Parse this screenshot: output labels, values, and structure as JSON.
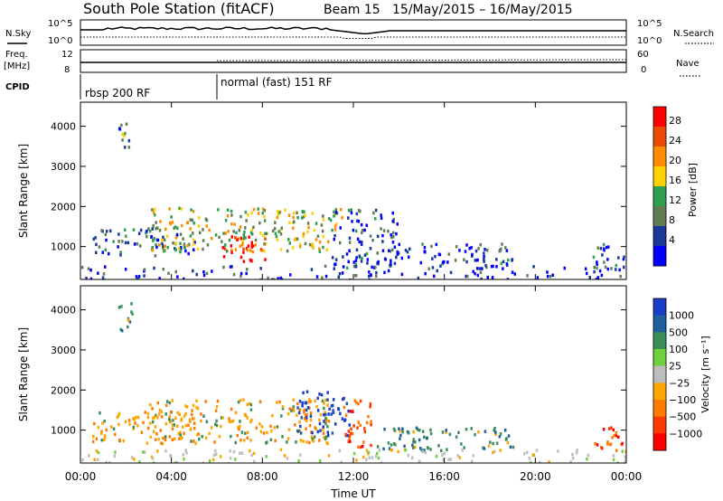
{
  "header": {
    "station": "South Pole Station (fitACF)",
    "beam": "Beam 15",
    "dates": "15/May/2015 – 16/May/2015"
  },
  "top_panels": {
    "nsky_label": "N.Sky",
    "nsearch_label": "N.Search",
    "noise_ticks_left": [
      "10^5",
      "10^0"
    ],
    "noise_ticks_right": [
      "10^5",
      "10^0"
    ],
    "freq_label_1": "Freq.",
    "freq_label_2": "[MHz]",
    "freq_ticks": [
      "12",
      "8"
    ],
    "nave_label": "Nave",
    "nave_ticks": [
      "60",
      "0"
    ],
    "cpid_label": "CPID",
    "cpid_segments": [
      {
        "label": "rbsp 200 RF",
        "start_hour": 0,
        "end_hour": 6
      },
      {
        "label": "normal (fast) 151 RF",
        "start_hour": 6,
        "end_hour": 24
      }
    ]
  },
  "power_panel": {
    "colorbar_label": "Power [dB]",
    "colorbar_ticks": [
      "28",
      "24",
      "20",
      "16",
      "12",
      "8",
      "4"
    ],
    "colors": [
      "#ff0000",
      "#e84a00",
      "#ff8c00",
      "#ffd000",
      "#2e9e4f",
      "#607d52",
      "#1a3a9a",
      "#0000ff"
    ]
  },
  "velocity_panel": {
    "colorbar_label": "Velocity [m s⁻¹]",
    "colorbar_ticks": [
      "1000",
      "500",
      "100",
      "25",
      "−25",
      "−100",
      "−500",
      "−1000"
    ],
    "colors": [
      "#1a3ec8",
      "#1f5f9e",
      "#3b8f5a",
      "#6fd040",
      "#bdbdbd",
      "#ffa500",
      "#ff7a00",
      "#ff3a00",
      "#ff0000"
    ]
  },
  "axes": {
    "ylabel": "Slant Range [km]",
    "xlabel": "Time UT",
    "y_ticks": [
      "4000",
      "3000",
      "2000",
      "1000"
    ],
    "x_ticks": [
      "00:00",
      "04:00",
      "08:00",
      "12:00",
      "16:00",
      "20:00",
      "00:00"
    ]
  },
  "chart_data": [
    {
      "type": "heatmap",
      "title": "Power",
      "xlabel": "Time UT",
      "ylabel": "Slant Range [km]",
      "x_range_hours": [
        0,
        24
      ],
      "y_range_km": [
        180,
        4600
      ],
      "colorbar_label": "Power [dB]",
      "colorbar_range": [
        0,
        30
      ],
      "echo_regions": [
        {
          "t0": 1.6,
          "t1": 2.3,
          "r0": 3500,
          "r1": 4200,
          "level": 0.3
        },
        {
          "t0": 0.5,
          "t1": 5.0,
          "r0": 800,
          "r1": 1500,
          "level": 0.25
        },
        {
          "t0": 3.0,
          "t1": 11.5,
          "r0": 900,
          "r1": 2000,
          "level": 0.5
        },
        {
          "t0": 6.2,
          "t1": 8.2,
          "r0": 650,
          "r1": 1300,
          "level": 0.95
        },
        {
          "t0": 11.0,
          "t1": 14.0,
          "r0": 500,
          "r1": 2000,
          "level": 0.2
        },
        {
          "t0": 13.5,
          "t1": 19.0,
          "r0": 500,
          "r1": 1100,
          "level": 0.15
        },
        {
          "t0": 22.5,
          "t1": 24.0,
          "r0": 500,
          "r1": 1100,
          "level": 0.2
        },
        {
          "t0": 0.0,
          "t1": 24.0,
          "r0": 200,
          "r1": 550,
          "level": 0.1
        }
      ]
    },
    {
      "type": "heatmap",
      "title": "Velocity",
      "xlabel": "Time UT",
      "ylabel": "Slant Range [km]",
      "x_range_hours": [
        0,
        24
      ],
      "y_range_km": [
        180,
        4600
      ],
      "colorbar_label": "Velocity [m s⁻¹]",
      "colorbar_range": [
        -1000,
        1000
      ],
      "echo_regions": [
        {
          "t0": 1.6,
          "t1": 2.3,
          "r0": 3500,
          "r1": 4200,
          "velocity": 100
        },
        {
          "t0": 0.5,
          "t1": 5.0,
          "r0": 700,
          "r1": 1500,
          "velocity": -150
        },
        {
          "t0": 3.0,
          "t1": 11.0,
          "r0": 700,
          "r1": 1800,
          "velocity": -200
        },
        {
          "t0": 9.5,
          "t1": 11.8,
          "r0": 900,
          "r1": 2000,
          "velocity": 500
        },
        {
          "t0": 11.5,
          "t1": 12.8,
          "r0": 600,
          "r1": 1800,
          "velocity": -500
        },
        {
          "t0": 13.0,
          "t1": 19.0,
          "r0": 500,
          "r1": 1100,
          "velocity": 200
        },
        {
          "t0": 22.5,
          "t1": 24.0,
          "r0": 500,
          "r1": 1100,
          "velocity": -300
        },
        {
          "t0": 0.0,
          "t1": 24.0,
          "r0": 200,
          "r1": 550,
          "velocity": 0
        }
      ]
    }
  ]
}
